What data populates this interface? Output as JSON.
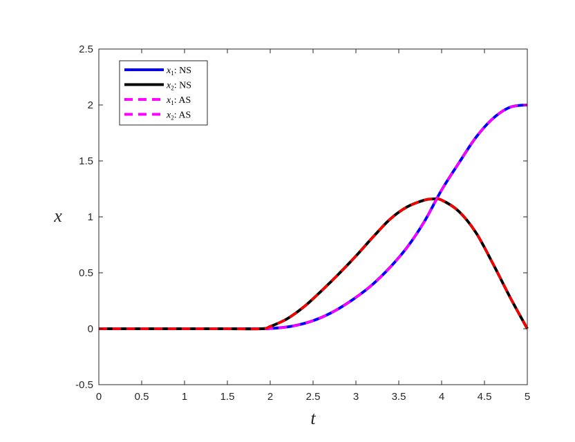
{
  "chart_data": {
    "type": "line",
    "xlabel": "t",
    "ylabel": "x",
    "xlim": [
      0,
      5
    ],
    "ylim": [
      -0.5,
      2.5
    ],
    "xticks": [
      0,
      0.5,
      1,
      1.5,
      2,
      2.5,
      3,
      3.5,
      4,
      4.5,
      5
    ],
    "yticks": [
      -0.5,
      0,
      0.5,
      1,
      1.5,
      2,
      2.5
    ],
    "xtick_labels": [
      "0",
      "0.5",
      "1",
      "1.5",
      "2",
      "2.5",
      "3",
      "3.5",
      "4",
      "4.5",
      "5"
    ],
    "ytick_labels": [
      "-0.5",
      "0",
      "0.5",
      "1",
      "1.5",
      "2",
      "2.5"
    ],
    "grid": false,
    "legend_placement": "top-left",
    "series": [
      {
        "name": "x1: NS",
        "legend_var": "x",
        "legend_sub": "1",
        "legend_text": ": NS",
        "color": "#0000ff",
        "style": "solid",
        "x": [
          0,
          0.5,
          1,
          1.5,
          1.9,
          2.0,
          2.2,
          2.4,
          2.6,
          2.8,
          3.0,
          3.2,
          3.4,
          3.6,
          3.8,
          4.0,
          4.2,
          4.4,
          4.6,
          4.8,
          5.0
        ],
        "y": [
          0,
          0,
          0,
          0,
          0,
          0.002,
          0.016,
          0.048,
          0.102,
          0.18,
          0.28,
          0.4,
          0.55,
          0.73,
          0.96,
          1.24,
          1.48,
          1.71,
          1.88,
          1.98,
          2.0
        ]
      },
      {
        "name": "x2: NS",
        "legend_var": "x",
        "legend_sub": "2",
        "legend_text": ": NS",
        "color": "#000000",
        "style": "solid",
        "x": [
          0,
          0.5,
          1,
          1.5,
          1.9,
          2.0,
          2.2,
          2.4,
          2.6,
          2.8,
          3.0,
          3.2,
          3.4,
          3.6,
          3.8,
          3.9,
          4.0,
          4.2,
          4.4,
          4.6,
          4.8,
          5.0
        ],
        "y": [
          0,
          0,
          0,
          0,
          0,
          0.02,
          0.09,
          0.2,
          0.34,
          0.49,
          0.65,
          0.82,
          0.98,
          1.09,
          1.15,
          1.16,
          1.15,
          1.05,
          0.86,
          0.58,
          0.28,
          0
        ]
      },
      {
        "name": "x1: AS",
        "legend_var": "x",
        "legend_sub": "1",
        "legend_text": ": AS",
        "color": "#ff00ff",
        "style": "dashed",
        "x": [
          0,
          0.5,
          1,
          1.5,
          1.9,
          2.0,
          2.2,
          2.4,
          2.6,
          2.8,
          3.0,
          3.2,
          3.4,
          3.6,
          3.8,
          4.0,
          4.2,
          4.4,
          4.6,
          4.8,
          5.0
        ],
        "y": [
          0,
          0,
          0,
          0,
          0,
          0.002,
          0.016,
          0.048,
          0.102,
          0.18,
          0.28,
          0.4,
          0.55,
          0.73,
          0.96,
          1.24,
          1.48,
          1.71,
          1.88,
          1.98,
          2.0
        ]
      },
      {
        "name": "x2: AS",
        "legend_var": "x",
        "legend_sub": "2",
        "legend_text": ": AS",
        "color": "#ff00ff",
        "plot_color": "#ff0000",
        "style": "dashed",
        "x": [
          0,
          0.5,
          1,
          1.5,
          1.9,
          2.0,
          2.2,
          2.4,
          2.6,
          2.8,
          3.0,
          3.2,
          3.4,
          3.6,
          3.8,
          3.9,
          4.0,
          4.2,
          4.4,
          4.6,
          4.8,
          5.0
        ],
        "y": [
          0,
          0,
          0,
          0,
          0,
          0.02,
          0.09,
          0.2,
          0.34,
          0.49,
          0.65,
          0.82,
          0.98,
          1.09,
          1.15,
          1.16,
          1.15,
          1.05,
          0.86,
          0.58,
          0.28,
          0
        ]
      }
    ]
  }
}
